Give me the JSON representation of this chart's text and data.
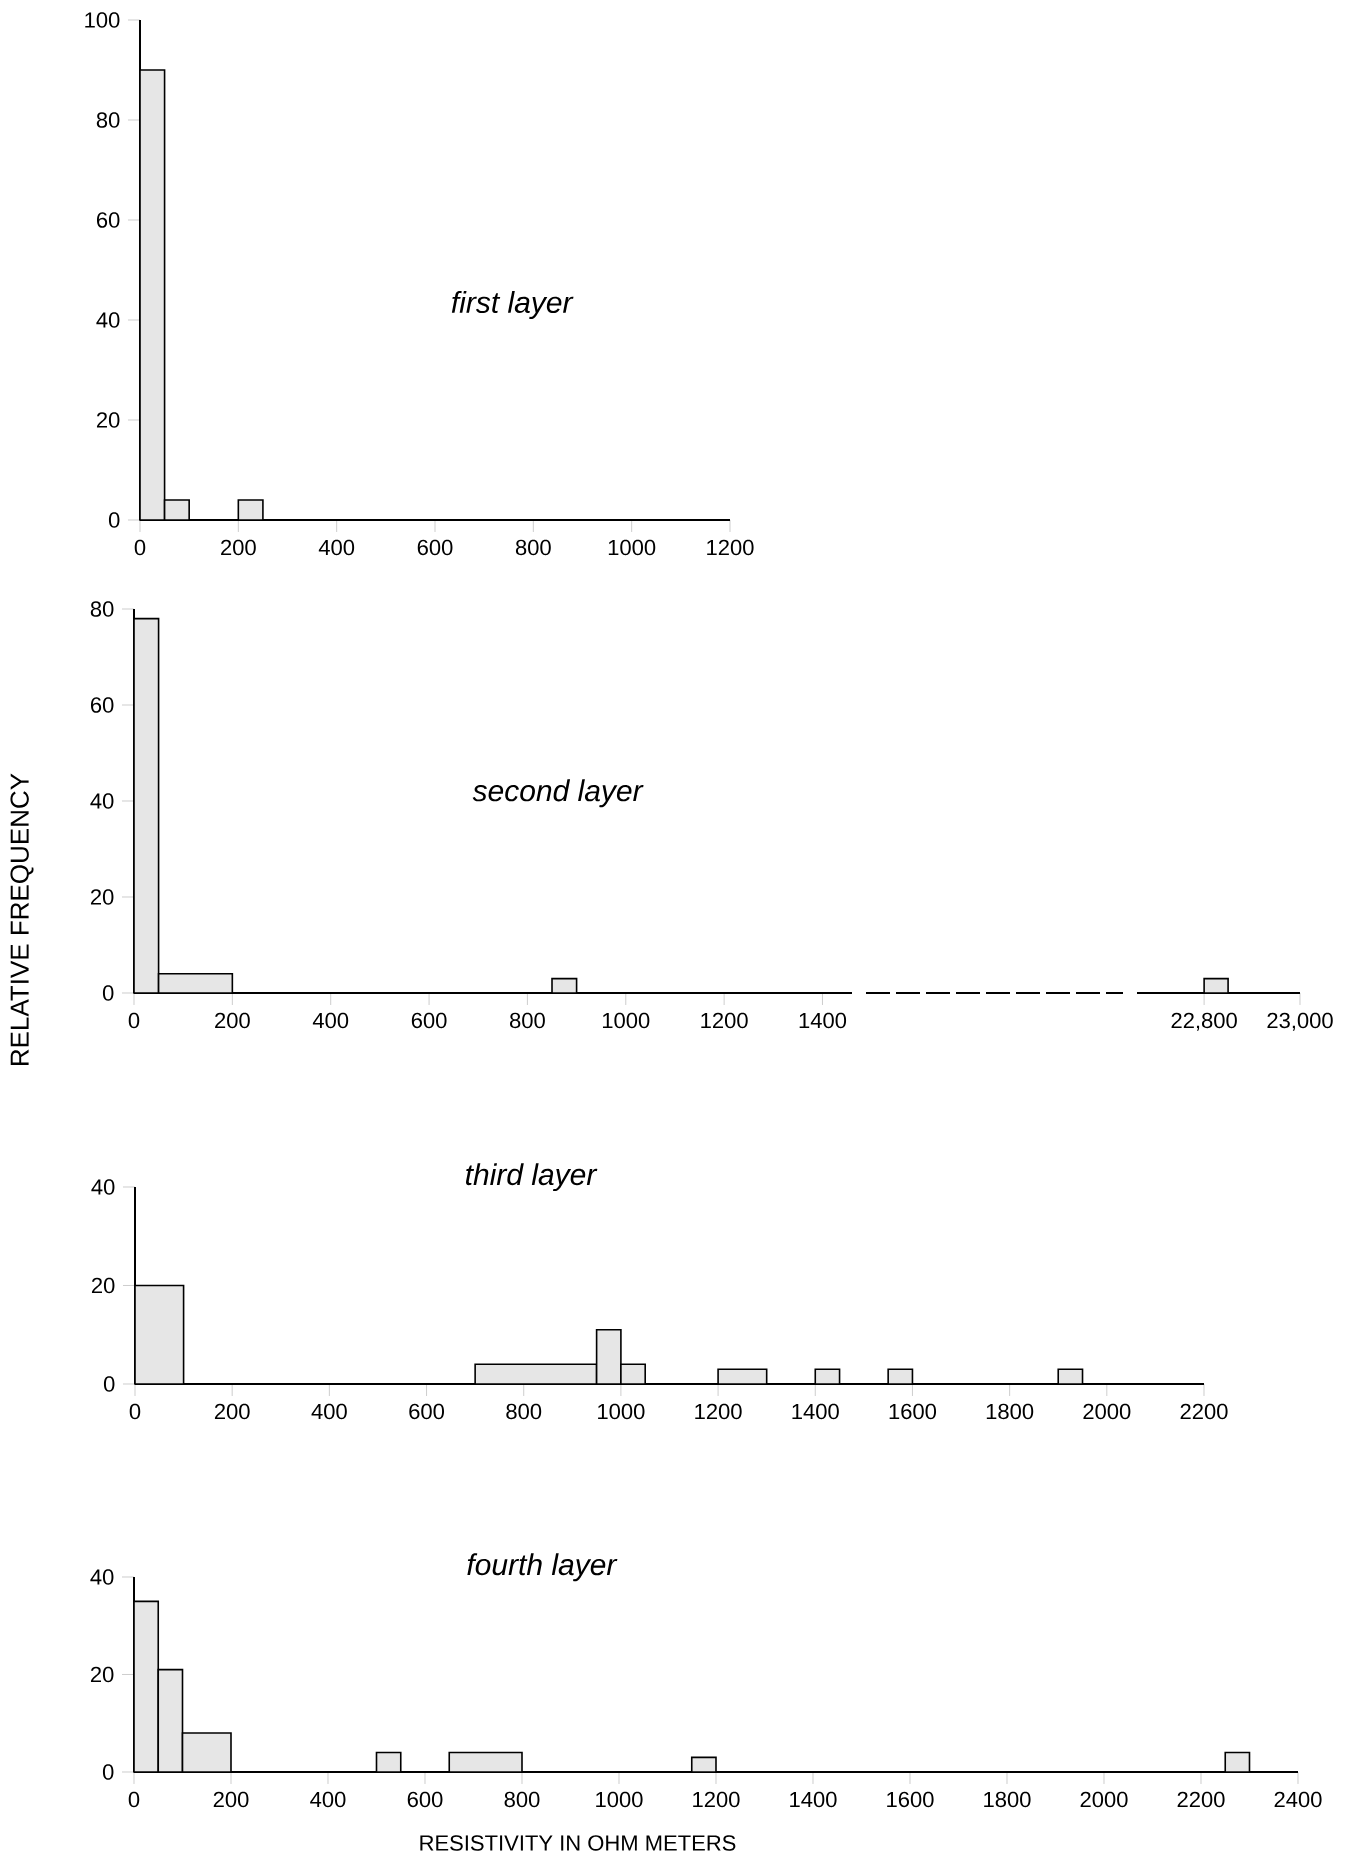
{
  "chart_data": [
    {
      "type": "histogram",
      "title": "first layer",
      "bins": [
        0,
        50,
        100,
        150,
        200,
        250
      ],
      "values": [
        90,
        4,
        0,
        0,
        4
      ],
      "color": "#e6e6e6",
      "xlim": [
        0,
        1200
      ],
      "ylim": [
        0,
        100
      ],
      "xticks": [
        0,
        200,
        400,
        600,
        800,
        1000,
        1200
      ],
      "yticks": [
        0,
        20,
        40,
        60,
        80,
        100
      ]
    },
    {
      "type": "histogram",
      "title": "second layer",
      "ylabel": "RELATIVE FREQUENCY",
      "bins": [
        0,
        50,
        200,
        850,
        900
      ],
      "values": [
        78,
        4,
        0,
        3
      ],
      "color": "#e6e6e6",
      "xlim": [
        0,
        1460
      ],
      "ylim": [
        0,
        80
      ],
      "xticks": [
        0,
        200,
        400,
        600,
        800,
        1000,
        1200,
        1400
      ],
      "yticks": [
        0,
        20,
        40,
        60,
        80
      ]
    },
    {
      "type": "histogram",
      "bins": [
        22800,
        22850
      ],
      "values": [
        3
      ],
      "color": "#e6e6e6",
      "xlim": [
        22660,
        23000
      ],
      "ylim": [
        0,
        80
      ],
      "xticks": [
        {
          "value": 22800,
          "label": "22,800"
        },
        {
          "value": 23000,
          "label": "23,000"
        }
      ],
      "tick_labels": "x"
    },
    {
      "type": "histogram",
      "title": "third layer",
      "bins": [
        0,
        100,
        700,
        950,
        1000,
        1050,
        1200,
        1300,
        1400,
        1450,
        1550,
        1600,
        1900,
        1950
      ],
      "values": [
        20,
        0,
        4,
        11,
        4,
        0,
        3,
        0,
        3,
        0,
        3,
        0,
        3
      ],
      "color": "#e6e6e6",
      "xlim": [
        0,
        2200
      ],
      "ylim": [
        0,
        40
      ],
      "xticks": [
        0,
        200,
        400,
        600,
        800,
        1000,
        1200,
        1400,
        1600,
        1800,
        2000,
        2200
      ],
      "yticks": [
        0,
        20,
        40
      ]
    },
    {
      "type": "histogram",
      "title": "fourth layer",
      "xlabel": "RESISTIVITY IN OHM METERS",
      "bins": [
        0,
        50,
        100,
        200,
        500,
        550,
        650,
        800,
        1150,
        1200,
        2250,
        2300
      ],
      "values": [
        35,
        21,
        8,
        0,
        4,
        0,
        4,
        0,
        3,
        0,
        4
      ],
      "color": "#e6e6e6",
      "xlim": [
        0,
        2400
      ],
      "ylim": [
        0,
        40
      ],
      "xticks": [
        0,
        200,
        400,
        600,
        800,
        1000,
        1200,
        1400,
        1600,
        1800,
        2000,
        2200,
        2400
      ],
      "yticks": [
        0,
        20,
        40
      ]
    }
  ]
}
